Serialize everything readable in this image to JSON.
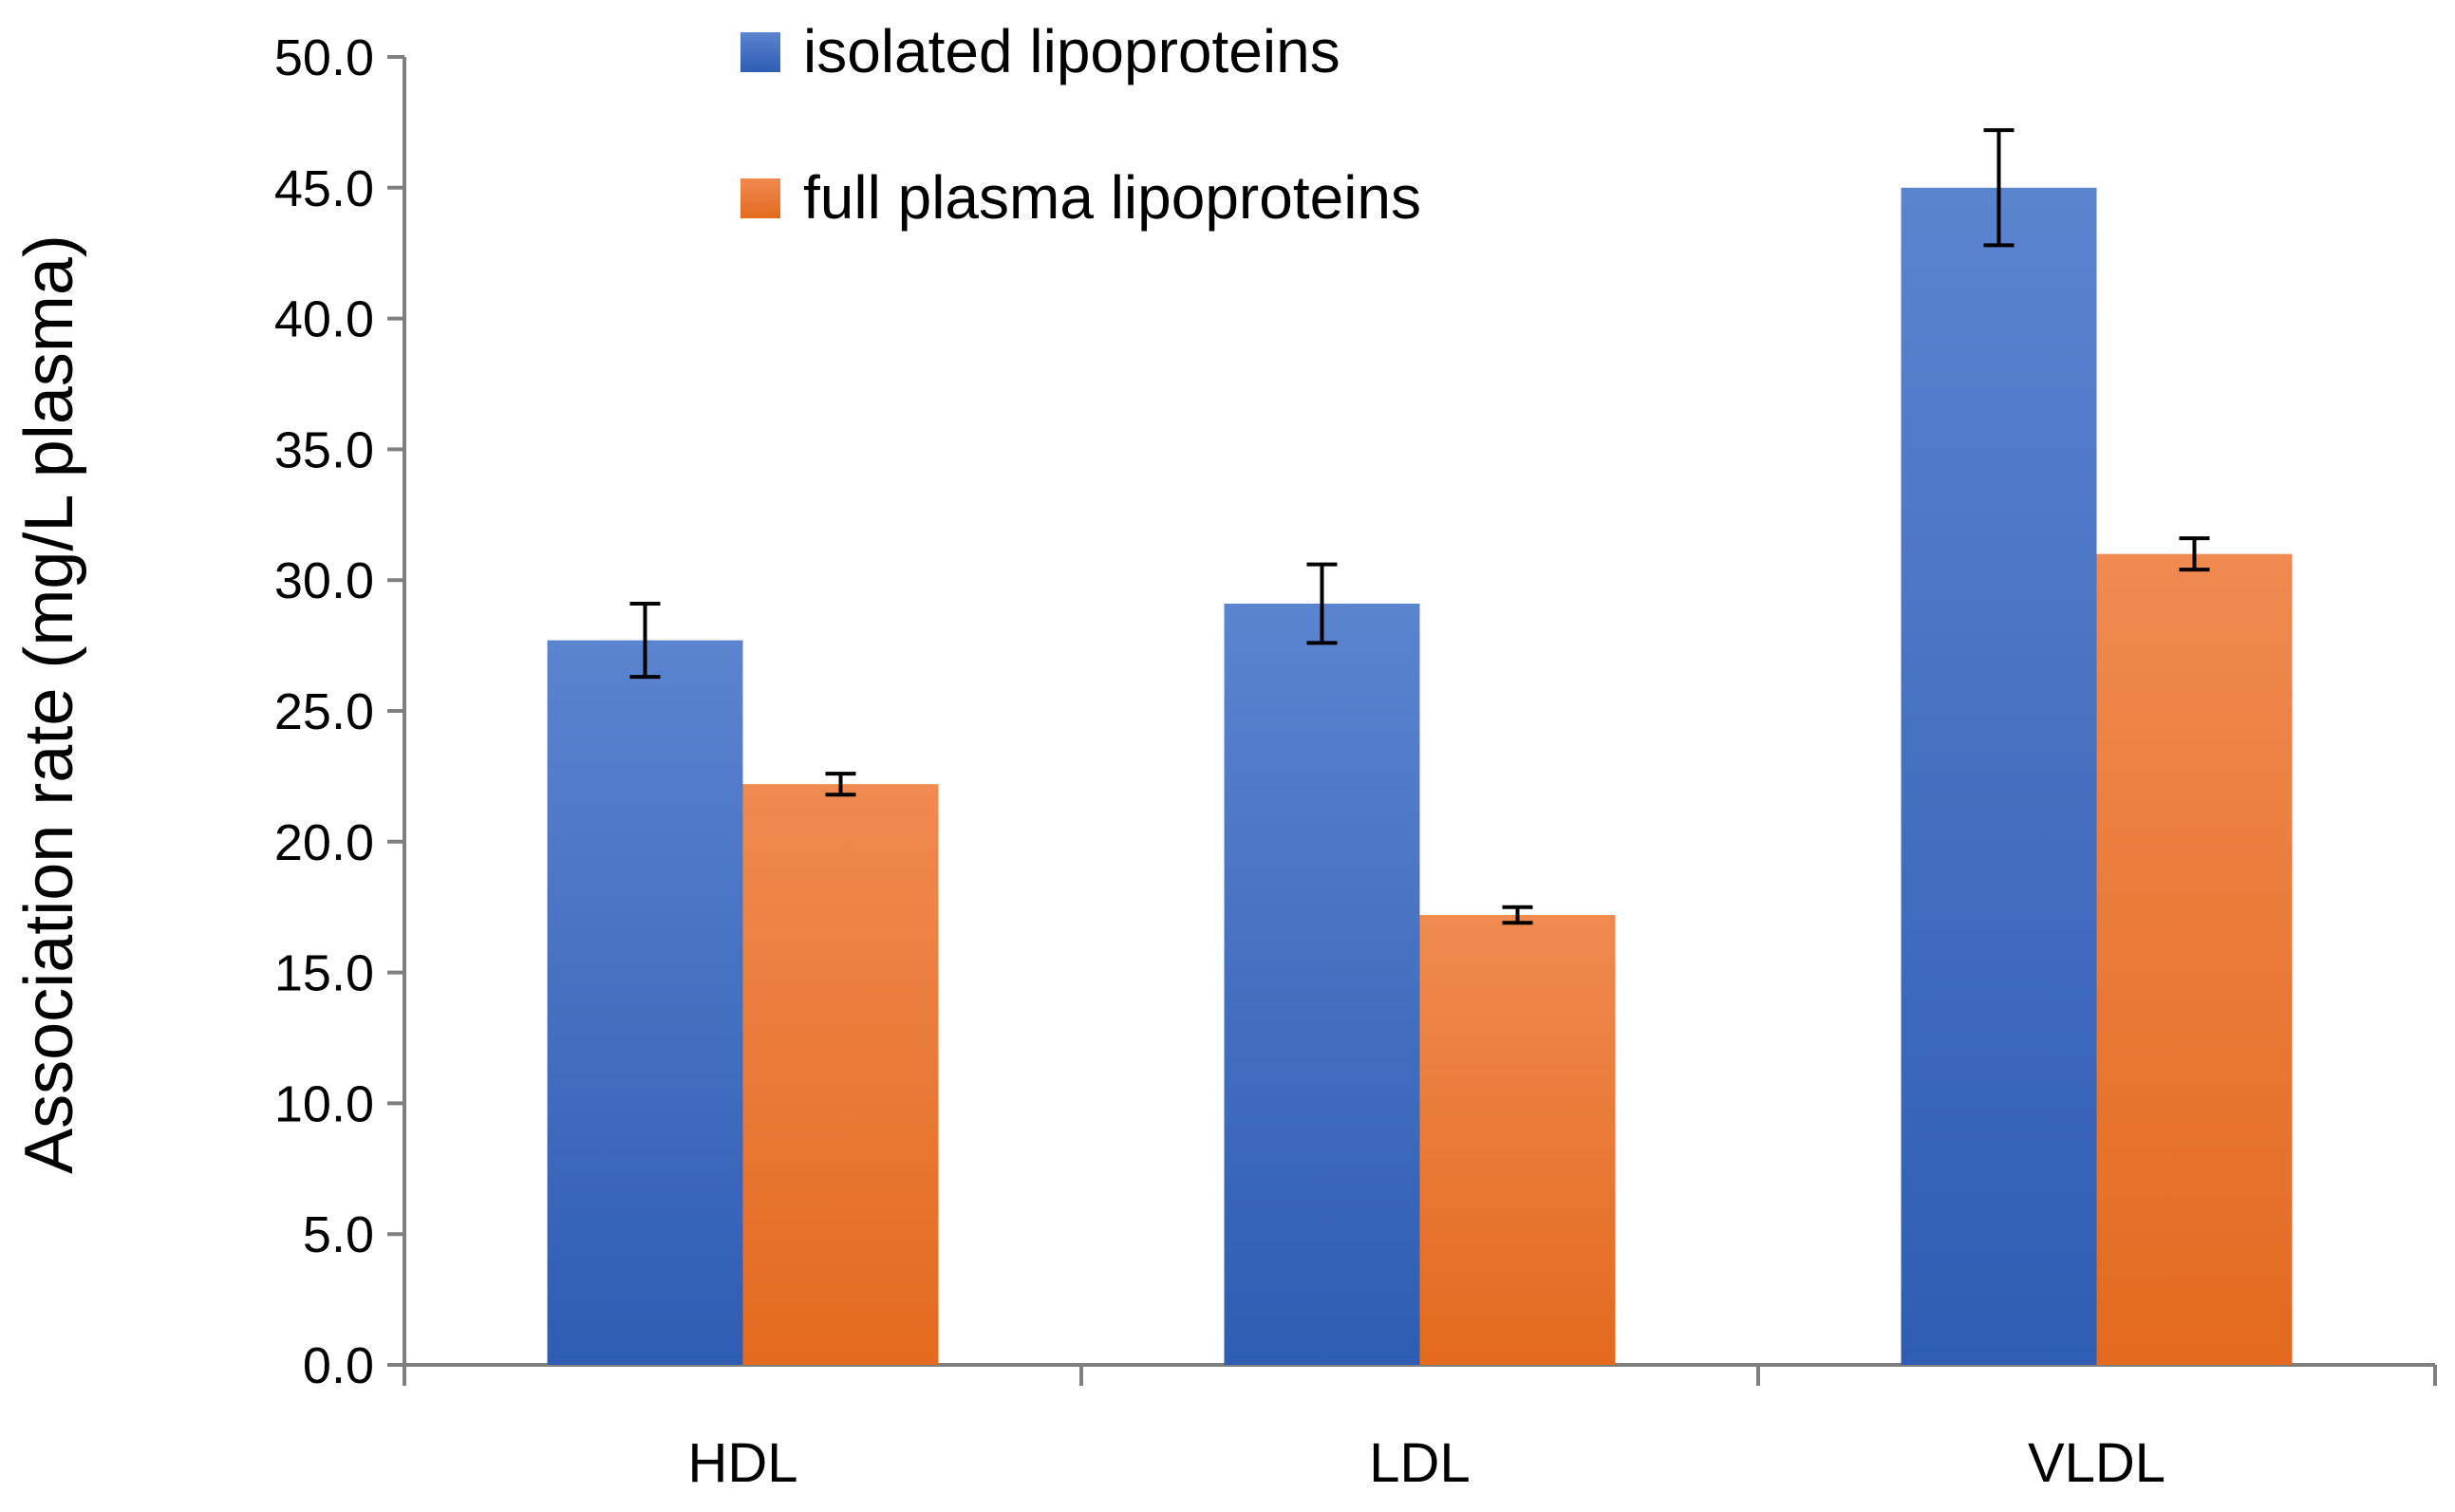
{
  "chart_data": {
    "type": "bar",
    "title": "",
    "xlabel": "",
    "ylabel": "Association rate  (mg/L plasma)",
    "ylim": [
      0,
      50
    ],
    "ytick_step": 5,
    "ytick_labels": [
      "0.0",
      "5.0",
      "10.0",
      "15.0",
      "20.0",
      "25.0",
      "30.0",
      "35.0",
      "40.0",
      "45.0",
      "50.0"
    ],
    "categories": [
      "HDL",
      "LDL",
      "VLDL"
    ],
    "legend_position": "top-center",
    "series": [
      {
        "name": "isolated lipoproteins",
        "color": "#4472C4",
        "color_light": "#5B84CF",
        "color_dark": "#2E5DB3",
        "values": [
          27.7,
          29.1,
          45.0
        ],
        "errors": [
          1.4,
          1.5,
          2.2
        ]
      },
      {
        "name": "full plasma lipoproteins",
        "color": "#ED7D31",
        "color_light": "#F08A50",
        "color_dark": "#E36A1E",
        "values": [
          22.2,
          17.2,
          31.0
        ],
        "errors": [
          0.4,
          0.3,
          0.6
        ]
      }
    ]
  }
}
